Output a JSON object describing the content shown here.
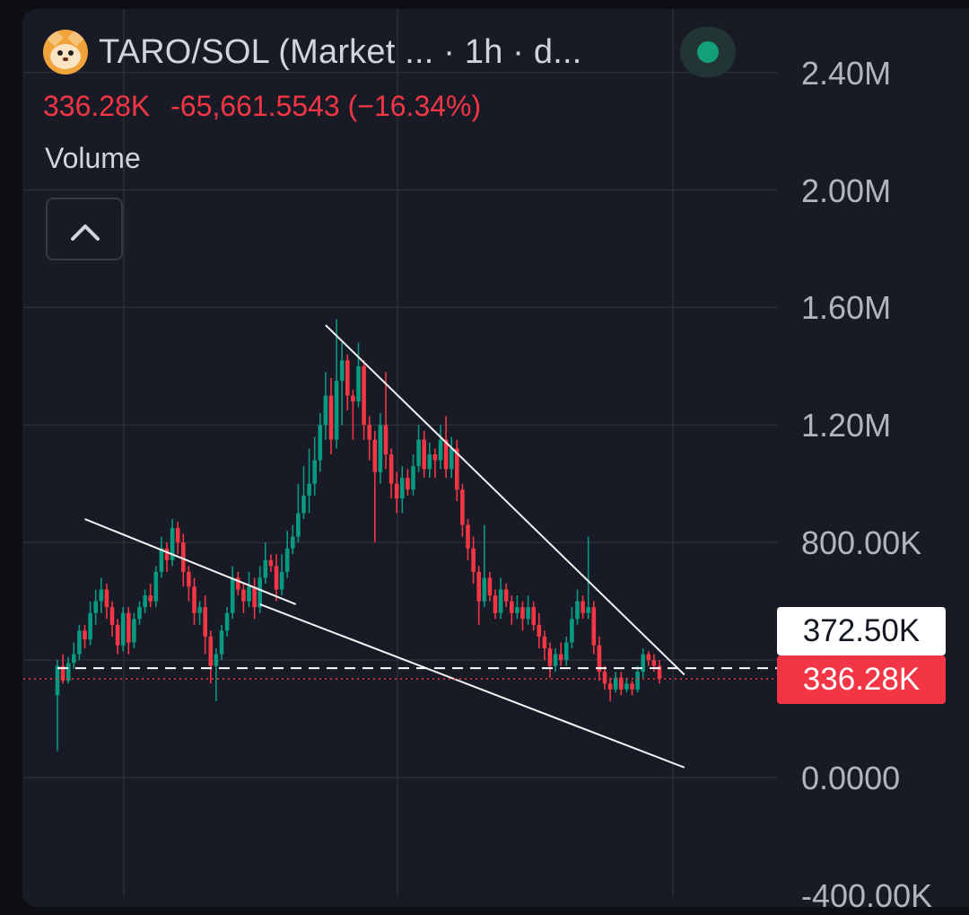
{
  "header": {
    "title": "TARO/SOL (Market ... · 1h · d...",
    "price": "336.28K",
    "change": "-65,661.5543 (−16.34%)",
    "indicator": "Volume"
  },
  "icons": {
    "avatar": "shiba-dog-token-icon",
    "live": "live-status-dot-icon",
    "collapse": "chevron-up-icon"
  },
  "colors": {
    "background": "#181a25",
    "up": "#089981",
    "down": "#f23645",
    "grid": "#2a2e39",
    "live": "#12a079"
  },
  "price_tags": {
    "white": "372.50K",
    "red": "336.28K"
  },
  "chart_data": {
    "type": "candlestick",
    "pair": "TARO/SOL",
    "interval": "1h",
    "y_axis": {
      "ticks": [
        "2.40M",
        "2.00M",
        "1.60M",
        "1.20M",
        "800.00K",
        "0.0000",
        "-400.00K"
      ],
      "range": [
        -400000,
        2500000
      ]
    },
    "last_price": 336280,
    "reference_price": 372500,
    "ohlc": [
      [
        280000,
        380000,
        90000,
        400000
      ],
      [
        380000,
        330000,
        320000,
        420000
      ],
      [
        330000,
        390000,
        320000,
        410000
      ],
      [
        390000,
        420000,
        370000,
        460000
      ],
      [
        420000,
        500000,
        400000,
        520000
      ],
      [
        500000,
        470000,
        440000,
        520000
      ],
      [
        470000,
        560000,
        450000,
        600000
      ],
      [
        560000,
        600000,
        520000,
        640000
      ],
      [
        600000,
        640000,
        560000,
        680000
      ],
      [
        640000,
        580000,
        540000,
        660000
      ],
      [
        580000,
        520000,
        480000,
        600000
      ],
      [
        520000,
        450000,
        420000,
        540000
      ],
      [
        450000,
        560000,
        430000,
        580000
      ],
      [
        560000,
        460000,
        420000,
        580000
      ],
      [
        460000,
        540000,
        440000,
        560000
      ],
      [
        540000,
        580000,
        520000,
        600000
      ],
      [
        580000,
        620000,
        560000,
        640000
      ],
      [
        620000,
        600000,
        580000,
        660000
      ],
      [
        600000,
        700000,
        580000,
        720000
      ],
      [
        700000,
        780000,
        680000,
        820000
      ],
      [
        780000,
        740000,
        700000,
        800000
      ],
      [
        740000,
        850000,
        720000,
        880000
      ],
      [
        850000,
        800000,
        760000,
        870000
      ],
      [
        800000,
        700000,
        650000,
        830000
      ],
      [
        700000,
        650000,
        600000,
        720000
      ],
      [
        650000,
        560000,
        520000,
        680000
      ],
      [
        560000,
        580000,
        520000,
        600000
      ],
      [
        580000,
        480000,
        420000,
        620000
      ],
      [
        480000,
        380000,
        320000,
        500000
      ],
      [
        380000,
        420000,
        260000,
        440000
      ],
      [
        420000,
        500000,
        400000,
        520000
      ],
      [
        500000,
        560000,
        480000,
        580000
      ],
      [
        560000,
        680000,
        540000,
        720000
      ],
      [
        680000,
        640000,
        620000,
        700000
      ],
      [
        640000,
        600000,
        560000,
        660000
      ],
      [
        600000,
        650000,
        580000,
        700000
      ],
      [
        650000,
        580000,
        540000,
        680000
      ],
      [
        580000,
        680000,
        560000,
        720000
      ],
      [
        680000,
        740000,
        660000,
        800000
      ],
      [
        740000,
        720000,
        700000,
        760000
      ],
      [
        720000,
        640000,
        600000,
        760000
      ],
      [
        640000,
        700000,
        620000,
        760000
      ],
      [
        700000,
        780000,
        680000,
        840000
      ],
      [
        780000,
        820000,
        760000,
        860000
      ],
      [
        820000,
        900000,
        800000,
        1000000
      ],
      [
        900000,
        960000,
        880000,
        1060000
      ],
      [
        960000,
        1000000,
        900000,
        1120000
      ],
      [
        1000000,
        1080000,
        960000,
        1160000
      ],
      [
        1080000,
        1200000,
        1040000,
        1240000
      ],
      [
        1200000,
        1300000,
        1150000,
        1380000
      ],
      [
        1300000,
        1150000,
        1100000,
        1360000
      ],
      [
        1150000,
        1350000,
        1120000,
        1560000
      ],
      [
        1350000,
        1420000,
        1200000,
        1480000
      ],
      [
        1420000,
        1300000,
        1250000,
        1440000
      ],
      [
        1300000,
        1280000,
        1150000,
        1320000
      ],
      [
        1280000,
        1400000,
        1260000,
        1480000
      ],
      [
        1400000,
        1200000,
        1150000,
        1420000
      ],
      [
        1200000,
        1150000,
        1080000,
        1230000
      ],
      [
        1150000,
        1040000,
        800000,
        1180000
      ],
      [
        1040000,
        1200000,
        1000000,
        1240000
      ],
      [
        1200000,
        1100000,
        1050000,
        1380000
      ],
      [
        1100000,
        1000000,
        950000,
        1120000
      ],
      [
        1000000,
        950000,
        900000,
        1040000
      ],
      [
        950000,
        1020000,
        900000,
        1060000
      ],
      [
        1020000,
        980000,
        960000,
        1050000
      ],
      [
        980000,
        1060000,
        960000,
        1100000
      ],
      [
        1060000,
        1150000,
        1040000,
        1200000
      ],
      [
        1150000,
        1050000,
        1020000,
        1180000
      ],
      [
        1050000,
        1100000,
        1020000,
        1140000
      ],
      [
        1100000,
        1080000,
        1020000,
        1120000
      ],
      [
        1080000,
        1150000,
        1050000,
        1200000
      ],
      [
        1150000,
        1050000,
        1020000,
        1230000
      ],
      [
        1050000,
        1120000,
        1020000,
        1160000
      ],
      [
        1120000,
        980000,
        940000,
        1150000
      ],
      [
        980000,
        860000,
        820000,
        1000000
      ],
      [
        860000,
        780000,
        740000,
        880000
      ],
      [
        780000,
        700000,
        660000,
        820000
      ],
      [
        700000,
        600000,
        520000,
        720000
      ],
      [
        600000,
        680000,
        580000,
        860000
      ],
      [
        680000,
        620000,
        600000,
        700000
      ],
      [
        620000,
        560000,
        540000,
        640000
      ],
      [
        560000,
        640000,
        540000,
        680000
      ],
      [
        640000,
        600000,
        580000,
        660000
      ],
      [
        600000,
        560000,
        520000,
        620000
      ],
      [
        560000,
        580000,
        540000,
        620000
      ],
      [
        580000,
        540000,
        500000,
        600000
      ],
      [
        540000,
        580000,
        520000,
        620000
      ],
      [
        580000,
        520000,
        500000,
        600000
      ],
      [
        520000,
        480000,
        440000,
        560000
      ],
      [
        480000,
        440000,
        400000,
        500000
      ],
      [
        440000,
        380000,
        340000,
        460000
      ],
      [
        380000,
        420000,
        360000,
        440000
      ],
      [
        420000,
        400000,
        380000,
        460000
      ],
      [
        400000,
        460000,
        380000,
        480000
      ],
      [
        460000,
        540000,
        440000,
        580000
      ],
      [
        540000,
        600000,
        520000,
        640000
      ],
      [
        600000,
        560000,
        540000,
        620000
      ],
      [
        560000,
        580000,
        540000,
        820000
      ],
      [
        580000,
        450000,
        420000,
        600000
      ],
      [
        450000,
        360000,
        330000,
        480000
      ],
      [
        360000,
        320000,
        300000,
        380000
      ],
      [
        320000,
        300000,
        260000,
        340000
      ],
      [
        300000,
        340000,
        290000,
        360000
      ],
      [
        340000,
        300000,
        280000,
        360000
      ],
      [
        300000,
        320000,
        290000,
        340000
      ],
      [
        320000,
        300000,
        280000,
        330000
      ],
      [
        300000,
        360000,
        290000,
        380000
      ],
      [
        360000,
        420000,
        340000,
        440000
      ],
      [
        420000,
        400000,
        380000,
        430000
      ],
      [
        400000,
        380000,
        360000,
        420000
      ],
      [
        380000,
        336280,
        320000,
        400000
      ]
    ],
    "trendlines": [
      {
        "from": [
          5,
          880000
        ],
        "to": [
          37,
          590000
        ]
      },
      {
        "from": [
          37,
          590000
        ],
        "to": [
          108,
          120000
        ]
      },
      {
        "from": [
          49,
          1540000
        ],
        "to": [
          108,
          350000
        ]
      }
    ]
  }
}
